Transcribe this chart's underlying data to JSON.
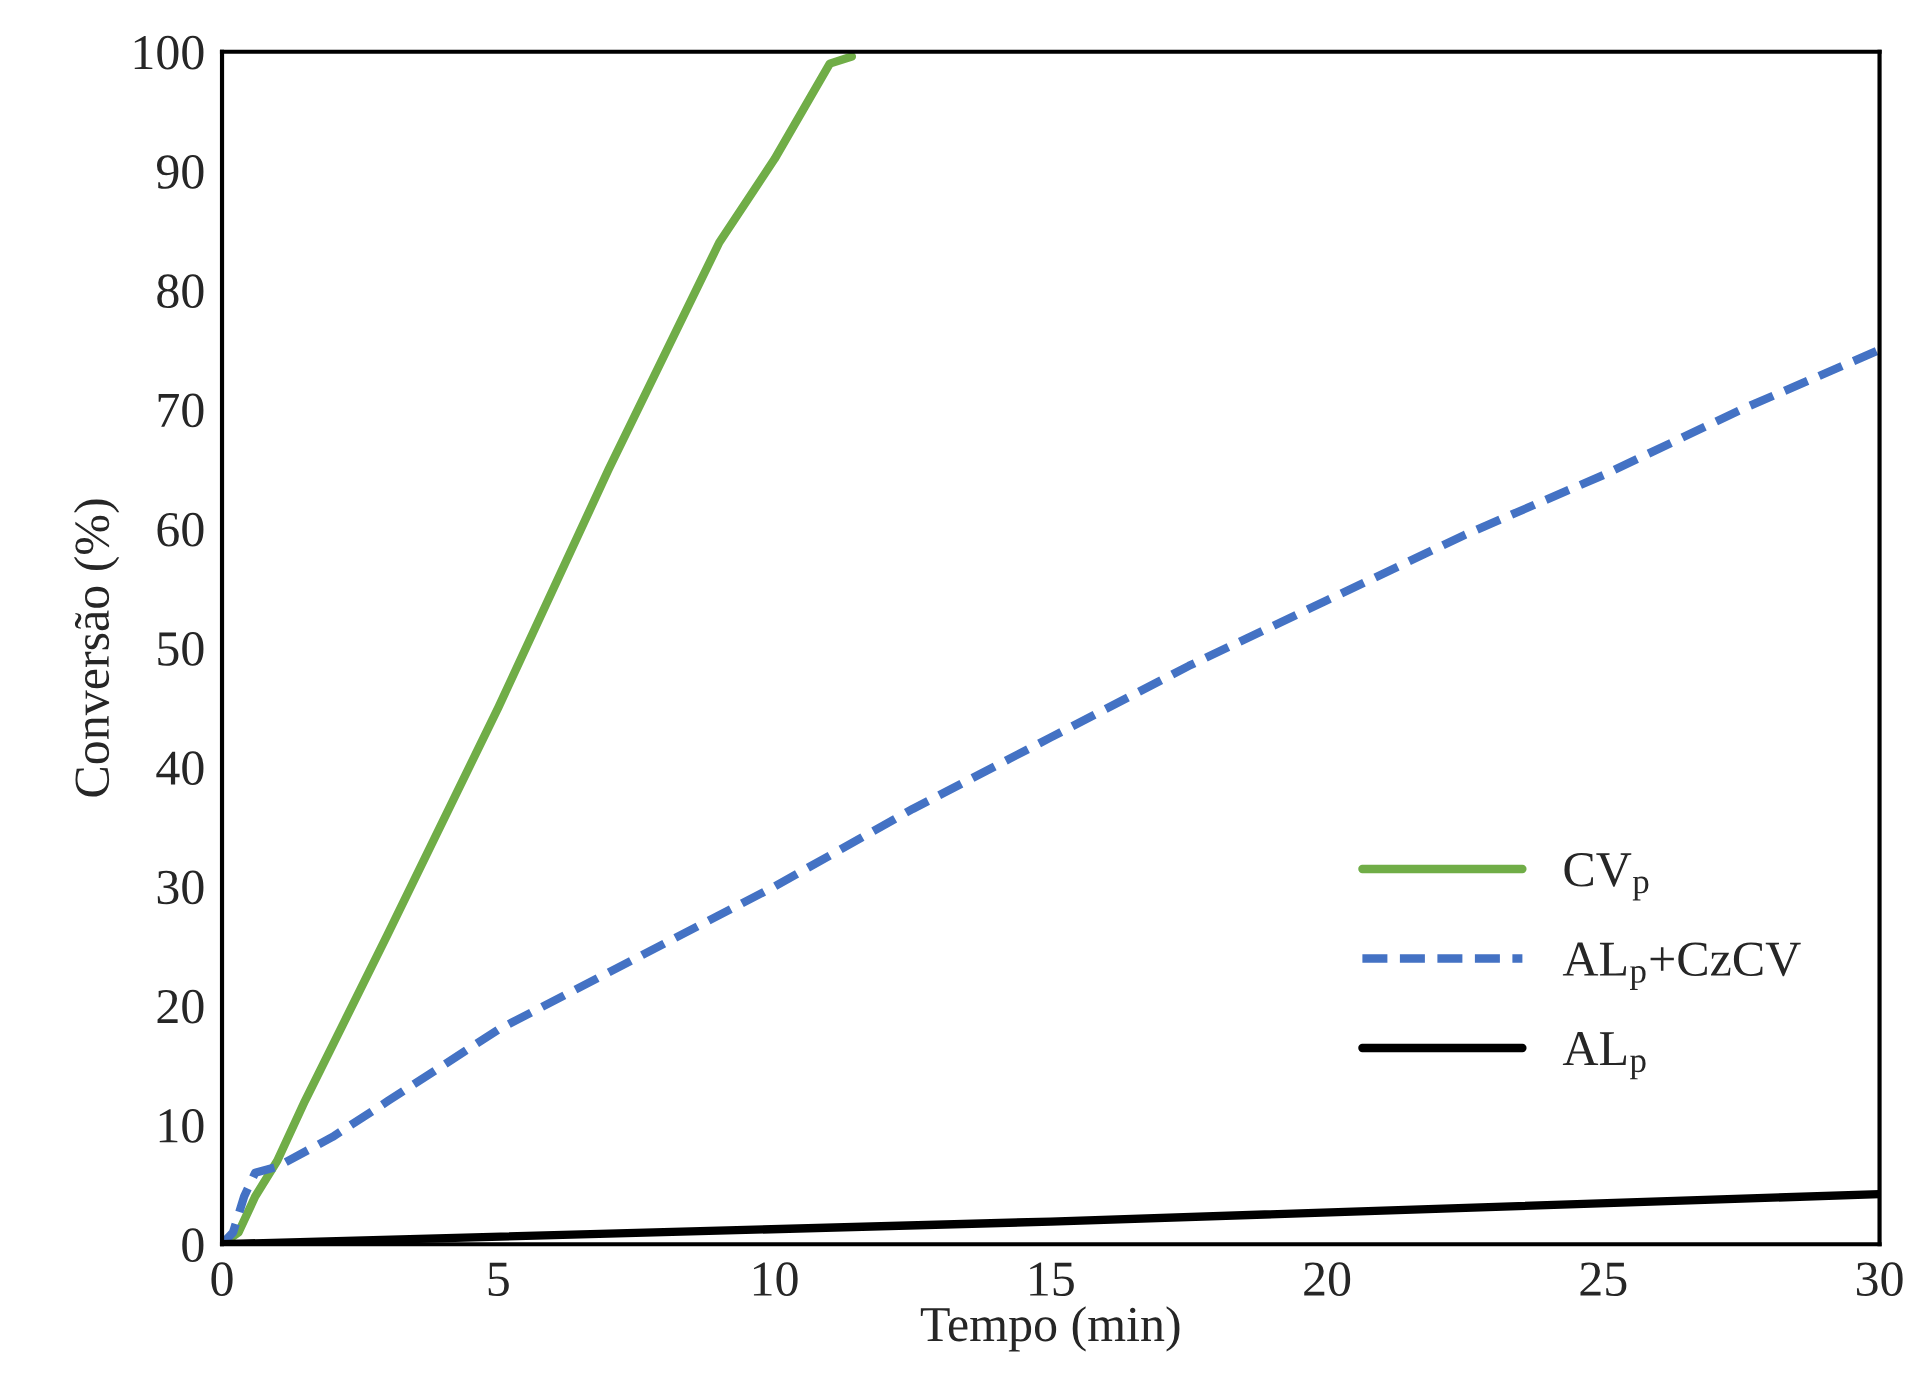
{
  "chart_data": {
    "type": "line",
    "xlabel": "Tempo (min)",
    "ylabel": "Conversão (%)",
    "xlim": [
      0,
      30
    ],
    "xticks": [
      0,
      5,
      10,
      15,
      20,
      25,
      30
    ],
    "ylim": [
      0,
      100
    ],
    "yticks": [
      0,
      10,
      20,
      30,
      40,
      50,
      60,
      70,
      80,
      90,
      100
    ],
    "grid": false,
    "legend": "lower right",
    "series": [
      {
        "name": "CV$_{p}$",
        "color": "#70ad47",
        "line_style": "solid",
        "x": [
          0,
          0.3,
          0.6,
          1,
          1.5,
          3,
          5,
          7,
          9,
          10,
          10.5,
          11,
          11.4
        ],
        "values": [
          0,
          1,
          4,
          7,
          12,
          26,
          45,
          65,
          84,
          91,
          95,
          99,
          99.6
        ]
      },
      {
        "name": "AL$_{p}$+CzCV",
        "color": "#4472c4",
        "line_style": "dashed",
        "x": [
          0,
          0.2,
          0.4,
          0.6,
          1,
          2,
          3,
          5,
          7.5,
          10,
          12.5,
          15,
          17.5,
          20,
          22.5,
          25,
          27.5,
          30
        ],
        "values": [
          0,
          1,
          4,
          6,
          6.5,
          9,
          12,
          18,
          24,
          30,
          36.5,
          42.5,
          48.5,
          54,
          59.5,
          64.5,
          70,
          75
        ]
      },
      {
        "name": "AL$_{p}$",
        "color": "#000000",
        "line_style": "solid",
        "x": [
          0,
          15,
          30
        ],
        "values": [
          0,
          1.9,
          4.2
        ]
      }
    ]
  }
}
